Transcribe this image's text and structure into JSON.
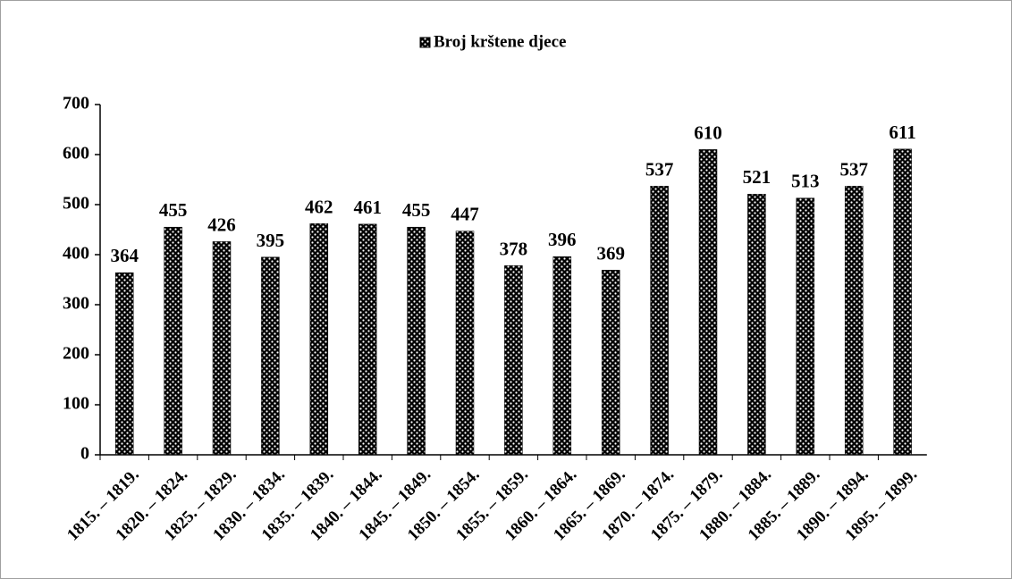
{
  "chart_data": {
    "type": "bar",
    "categories": [
      "1815. – 1819.",
      "1820. – 1824.",
      "1825. – 1829.",
      "1830. – 1834.",
      "1835. – 1839.",
      "1840. – 1844.",
      "1845. – 1849.",
      "1850. – 1854.",
      "1855. – 1859.",
      "1860. – 1864.",
      "1865. – 1869.",
      "1870. – 1874.",
      "1875. – 1879.",
      "1880. – 1884.",
      "1885. – 1889.",
      "1890. – 1894.",
      "1895. – 1899."
    ],
    "series": [
      {
        "name": "Broj krštene djece",
        "color": "#000000",
        "values": [
          364,
          455,
          426,
          395,
          462,
          461,
          455,
          447,
          378,
          396,
          369,
          537,
          610,
          521,
          513,
          537,
          611
        ]
      }
    ],
    "ylim": [
      0,
      700
    ],
    "yticks": [
      0,
      100,
      200,
      300,
      400,
      500,
      600,
      700
    ],
    "grid": false,
    "legend": "top"
  }
}
